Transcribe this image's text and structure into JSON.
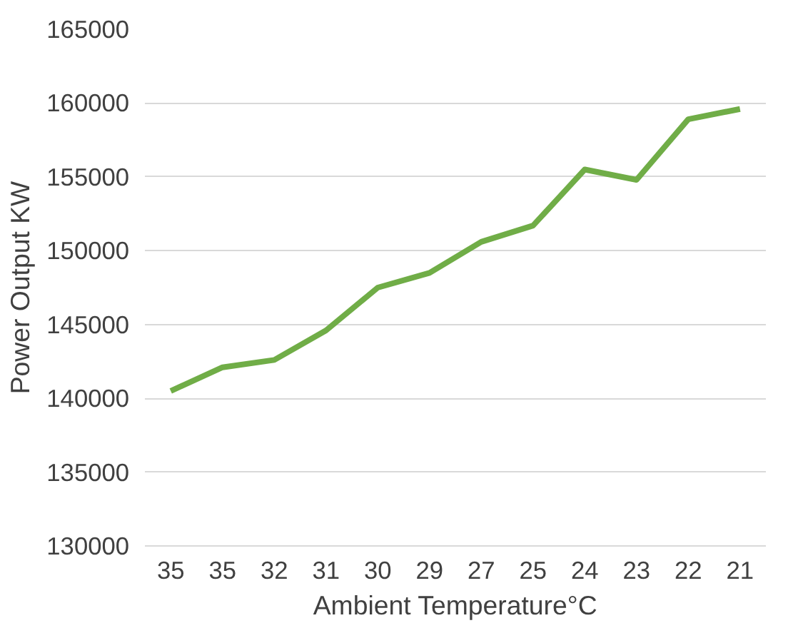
{
  "chart_data": {
    "type": "line",
    "xlabel": "Ambient Temperature°C",
    "ylabel": "Power Output KW",
    "categories": [
      "35",
      "35",
      "32",
      "31",
      "30",
      "29",
      "27",
      "25",
      "24",
      "23",
      "22",
      "21"
    ],
    "series": [
      {
        "color": "#70ad47",
        "values": [
          140500,
          142100,
          142600,
          144600,
          147500,
          148500,
          150600,
          151700,
          155500,
          154800,
          158900,
          159600
        ]
      }
    ],
    "ylim": [
      130000,
      165000
    ],
    "yticks": [
      130000,
      135000,
      140000,
      145000,
      150000,
      155000,
      160000,
      165000
    ],
    "grid": "y",
    "marker": "none",
    "line_style": "solid"
  }
}
